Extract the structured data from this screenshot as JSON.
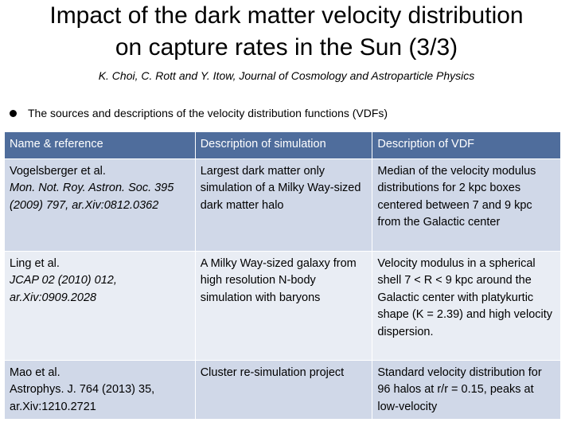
{
  "header": {
    "title_lines": [
      "Impact of the dark matter velocity distribution",
      "on capture rates in the Sun (3/3)"
    ],
    "subtitle": "K. Choi, C. Rott and Y. Itow, Journal of Cosmology and Astroparticle Physics"
  },
  "bullet": "The sources and descriptions of the velocity distribution functions (VDFs)",
  "table": {
    "columns": [
      "Name & reference",
      "Description of simulation",
      "Description of VDF"
    ],
    "rows": [
      {
        "name": "Vogelsberger et al.",
        "reference": "Mon. Not. Roy. Astron. Soc. 395 (2009) 797, ar.Xiv:0812.0362",
        "simulation": "Largest dark matter only simulation of a Milky Way-sized dark matter halo",
        "vdf": "Median of the velocity modulus distributions for 2 kpc boxes centered between 7 and 9 kpc from the Galactic center"
      },
      {
        "name": "Ling et al.",
        "reference": "JCAP 02 (2010) 012, ar.Xiv:0909.2028",
        "simulation": "A Milky Way-sized galaxy from high resolution N-body simulation with baryons",
        "vdf": "Velocity modulus in a spherical shell 7 < R < 9 kpc around the Galactic center with platykurtic shape (K = 2.39) and high velocity dispersion."
      },
      {
        "name": "Mao et al.",
        "reference": "Astrophys. J. 764 (2013) 35, ar.Xiv:1210.2721",
        "simulation": "Cluster re-simulation project",
        "vdf": "Standard velocity distribution for 96 halos at r/r = 0.15, peaks at low-velocity"
      }
    ]
  }
}
